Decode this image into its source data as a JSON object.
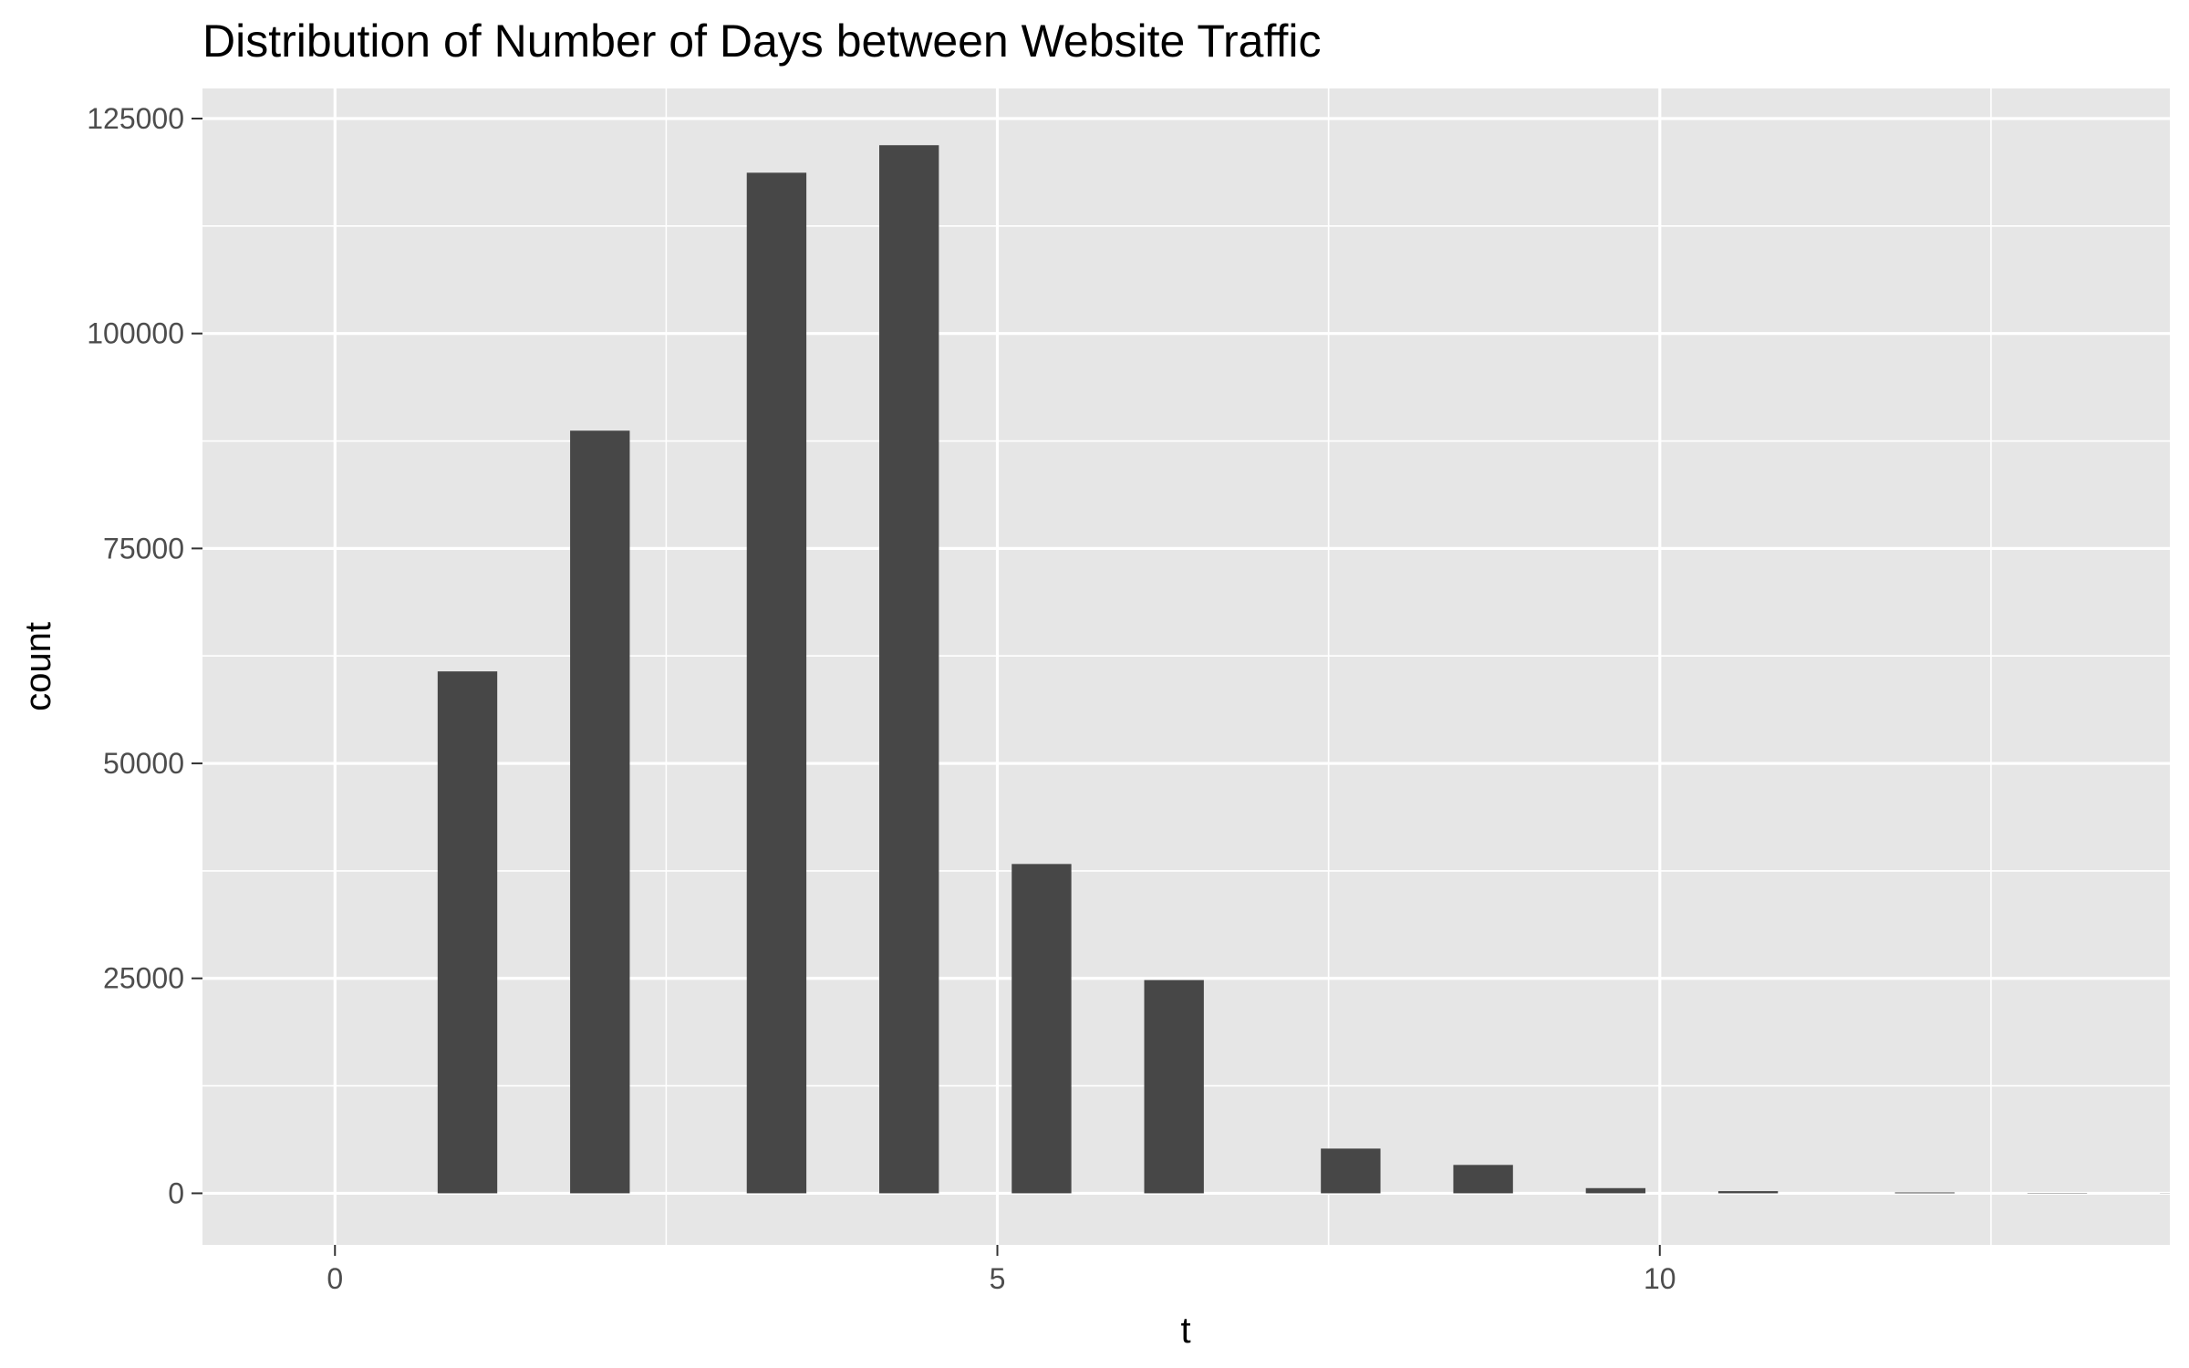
{
  "chart_data": {
    "type": "bar",
    "title": "Distribution of Number of Days between Website Traffic",
    "xlabel": "t",
    "ylabel": "count",
    "x": [
      0,
      1,
      2,
      3.3333,
      4.3333,
      5.3333,
      6.3333,
      7.6667,
      8.6667,
      9.6667,
      10.6667,
      12,
      13,
      14
    ],
    "values": [
      0,
      60700,
      88700,
      118700,
      121900,
      38300,
      24800,
      5200,
      3300,
      600,
      250,
      100,
      40,
      20
    ],
    "xlim": [
      -1.0,
      13.85
    ],
    "ylim": [
      -6000,
      128500
    ],
    "x_ticks": [
      0,
      5,
      10
    ],
    "y_ticks": [
      0,
      25000,
      50000,
      75000,
      100000,
      125000
    ],
    "grid": true,
    "colors": {
      "bar": "#474747",
      "panel": "#e6e6e6",
      "grid": "#ffffff",
      "text": "#4d4d4d"
    }
  }
}
